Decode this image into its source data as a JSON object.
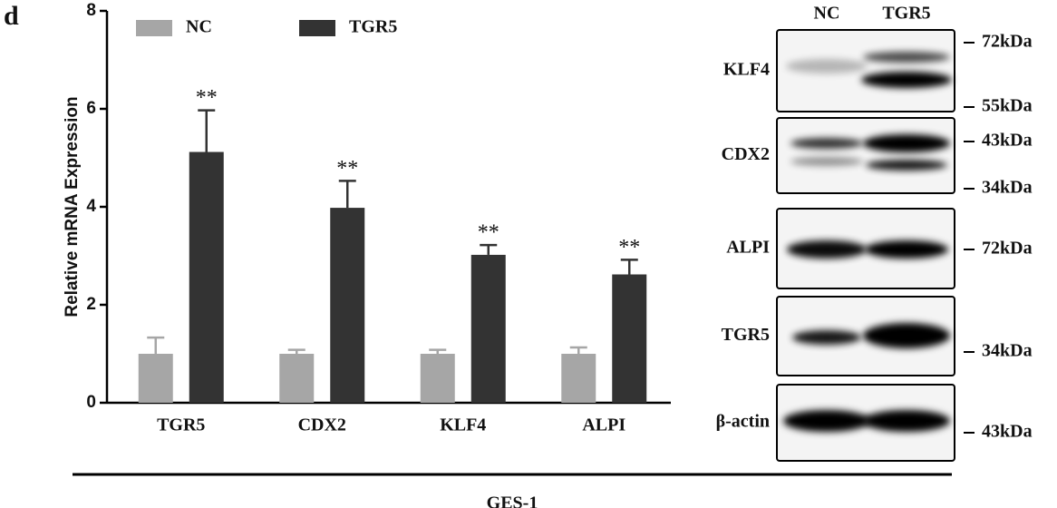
{
  "panel_label": "d",
  "chart_data": {
    "type": "bar",
    "ylabel": "Relative mRNA Expression",
    "categories": [
      "TGR5",
      "CDX2",
      "KLF4",
      "ALPI"
    ],
    "series": [
      {
        "name": "NC",
        "color": "#a6a6a6",
        "values": [
          1,
          1,
          1,
          1
        ],
        "errors": [
          0.33,
          0.08,
          0.08,
          0.13
        ]
      },
      {
        "name": "TGR5",
        "color": "#333333",
        "values": [
          5.12,
          3.98,
          3.02,
          2.62
        ],
        "errors": [
          0.85,
          0.55,
          0.2,
          0.3
        ],
        "annotations": [
          "**",
          "**",
          "**",
          "**"
        ]
      }
    ],
    "ylim": [
      0,
      8
    ],
    "yticks": [
      0,
      2,
      4,
      6,
      8
    ]
  },
  "blot": {
    "lanes": [
      "NC",
      "TGR5"
    ],
    "rows": [
      {
        "label": "KLF4",
        "markers": [
          "72kDa",
          "55kDa"
        ]
      },
      {
        "label": "CDX2",
        "markers": [
          "43kDa",
          "34kDa"
        ]
      },
      {
        "label": "ALPI",
        "markers": [
          "72kDa"
        ]
      },
      {
        "label": "TGR5",
        "markers": [
          "34kDa"
        ]
      },
      {
        "label": "β-actin",
        "markers": [
          "43kDa"
        ]
      }
    ]
  },
  "footer": "GES-1"
}
